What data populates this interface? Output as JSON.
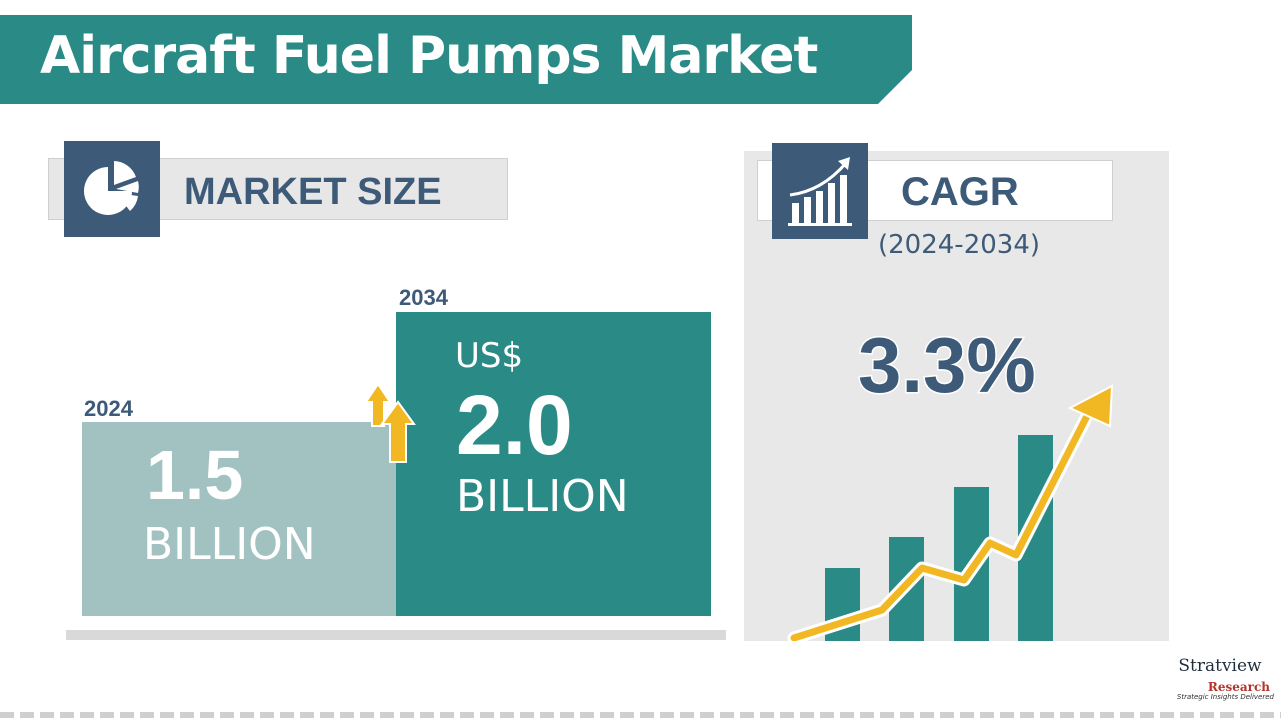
{
  "title": "Aircraft Fuel Pumps Market",
  "market_size": {
    "label": "MARKET SIZE",
    "icon": "pie-chart-icon",
    "bars": [
      {
        "year": "2024",
        "value": "1.5",
        "unit": "BILLION",
        "prefix": ""
      },
      {
        "year": "2034",
        "value": "2.0",
        "unit": "BILLION",
        "prefix": "US$"
      }
    ],
    "growth_icon": "up-arrows-icon"
  },
  "cagr": {
    "label": "CAGR",
    "period": "(2024-2034)",
    "value": "3.3%",
    "icon": "growth-bar-chart-icon"
  },
  "logo": {
    "name": "Stratview",
    "sub": "Research",
    "tagline": "Strategic Insights Delivered"
  },
  "colors": {
    "teal": "#2a8a86",
    "light_teal": "#a2c2c2",
    "navy": "#3d5a78",
    "arrow_yellow": "#f2b824"
  }
}
